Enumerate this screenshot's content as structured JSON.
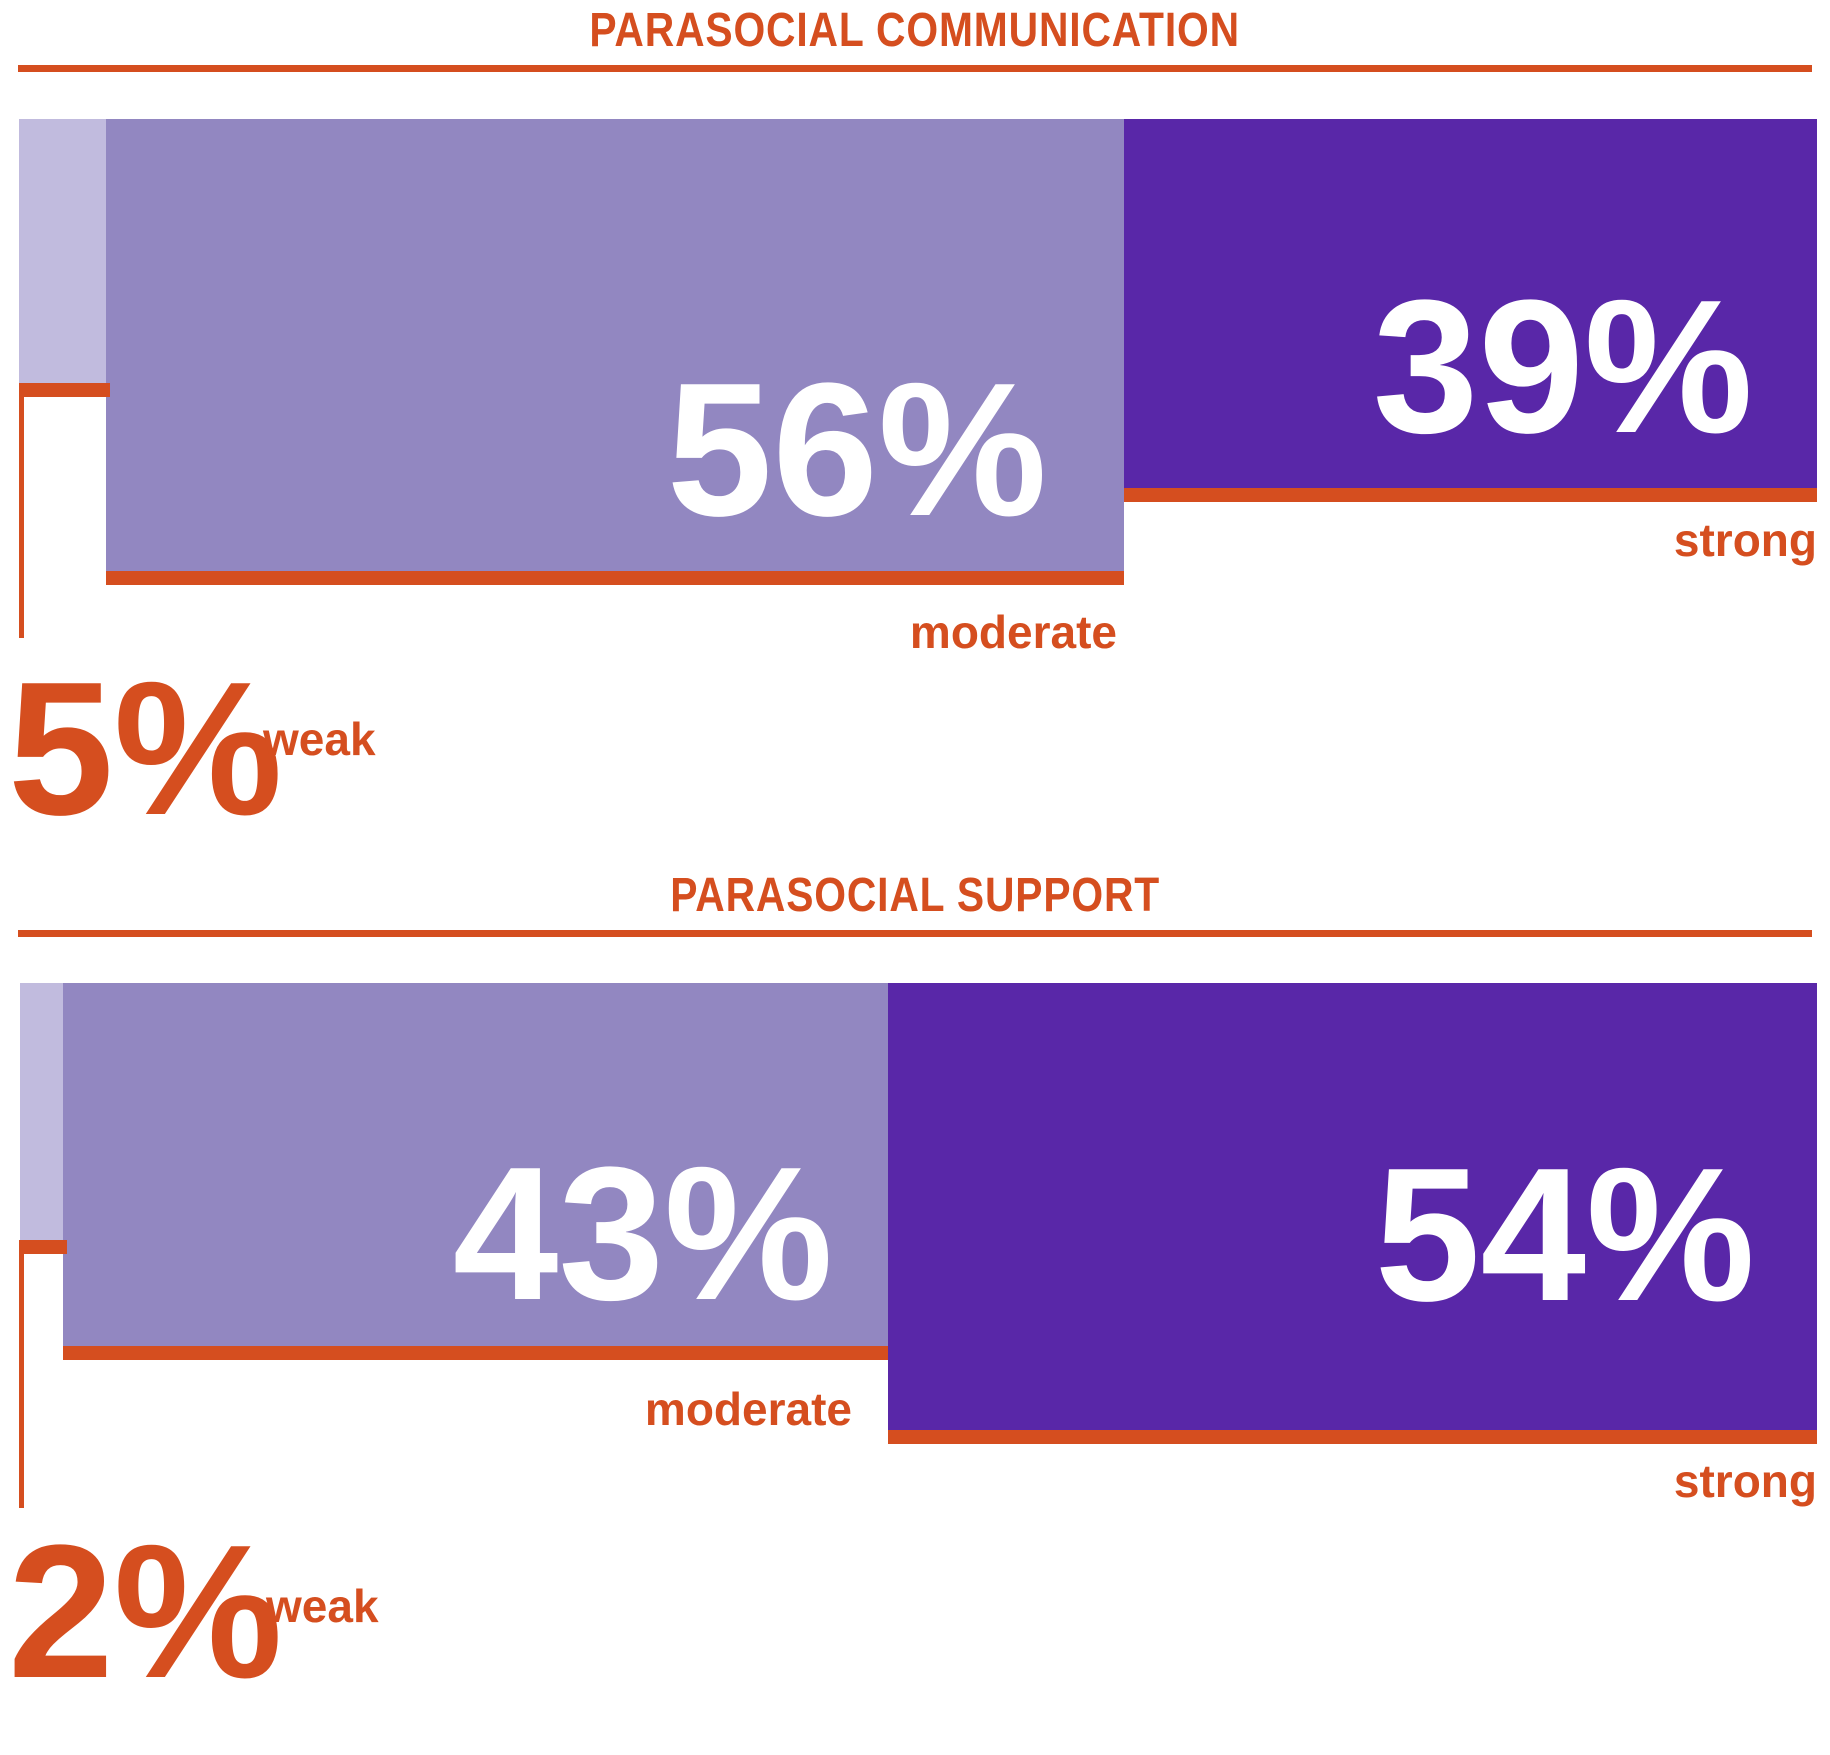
{
  "colors": {
    "accent": "#D54E1F",
    "weak": "#C1BBDE",
    "moderate": "#9287C1",
    "strong": "#5927A8",
    "value_text": "#ffffff"
  },
  "charts": [
    {
      "title": "PARASOCIAL COMMUNICATION",
      "weak": {
        "value": "5%",
        "label": "weak"
      },
      "moderate": {
        "value": "56%",
        "label": "moderate"
      },
      "strong": {
        "value": "39%",
        "label": "strong"
      }
    },
    {
      "title": "PARASOCIAL SUPPORT",
      "weak": {
        "value": "2%",
        "label": "weak"
      },
      "moderate": {
        "value": "43%",
        "label": "moderate"
      },
      "strong": {
        "value": "54%",
        "label": "strong"
      }
    }
  ],
  "chart_data": [
    {
      "type": "bar",
      "title": "PARASOCIAL COMMUNICATION",
      "categories": [
        "weak",
        "moderate",
        "strong"
      ],
      "values": [
        5,
        56,
        39
      ],
      "unit": "percent",
      "orientation": "horizontal-stacked",
      "legend_position": "none",
      "grid": false,
      "series_colors": [
        "#C1BBDE",
        "#9287C1",
        "#5927A8"
      ]
    },
    {
      "type": "bar",
      "title": "PARASOCIAL SUPPORT",
      "categories": [
        "weak",
        "moderate",
        "strong"
      ],
      "values": [
        2,
        43,
        54
      ],
      "unit": "percent",
      "orientation": "horizontal-stacked",
      "legend_position": "none",
      "grid": false,
      "series_colors": [
        "#C1BBDE",
        "#9287C1",
        "#5927A8"
      ]
    }
  ]
}
